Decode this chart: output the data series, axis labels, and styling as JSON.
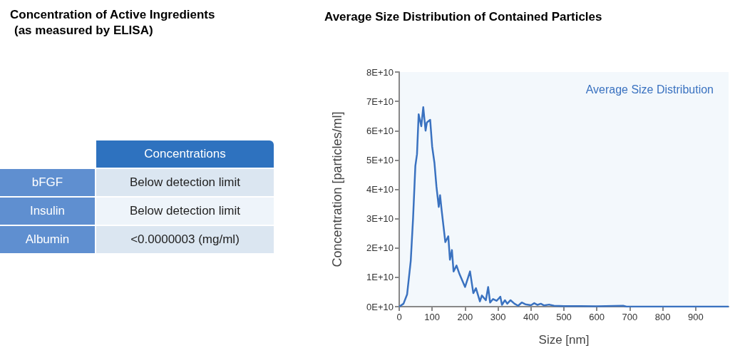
{
  "chart_data": [
    {
      "type": "other",
      "title": "Concentration of Active Ingredients",
      "subtitle": "(as measured by ELISA)",
      "xlabel": "Concentrations",
      "categories": [
        "bFGF",
        "Insulin",
        "Albumin"
      ],
      "value_labels": [
        "Below detection limit",
        "Below detection limit",
        "<0.0000003 (mg/ml)"
      ]
    },
    {
      "type": "line",
      "title": "Average Size Distribution of Contained Particles",
      "xlabel": "Size [nm]",
      "ylabel": "Concentration [particles/ml]",
      "legend": "top right",
      "xlim": [
        0,
        1000
      ],
      "xticks": [
        0,
        100,
        200,
        300,
        400,
        500,
        600,
        700,
        800,
        900
      ],
      "ylim": [
        0,
        80000000000
      ],
      "yticks": [
        {
          "value": 0,
          "label": "0E+10"
        },
        {
          "value": 10000000000,
          "label": "1E+10"
        },
        {
          "value": 20000000000,
          "label": "2E+10"
        },
        {
          "value": 30000000000,
          "label": "3E+10"
        },
        {
          "value": 40000000000,
          "label": "4E+10"
        },
        {
          "value": 50000000000,
          "label": "5E+10"
        },
        {
          "value": 60000000000,
          "label": "6E+10"
        },
        {
          "value": 70000000000,
          "label": "7E+10"
        },
        {
          "value": 80000000000,
          "label": "8E+10"
        }
      ],
      "series": [
        {
          "name": "Average Size Distribution",
          "color": "#3a72c0",
          "x": [
            0,
            13,
            24,
            35,
            42,
            49,
            54,
            59,
            67,
            73,
            80,
            84,
            94,
            100,
            107,
            113,
            120,
            124,
            129,
            140,
            149,
            154,
            160,
            165,
            174,
            183,
            200,
            215,
            225,
            233,
            245,
            251,
            263,
            270,
            276,
            285,
            296,
            307,
            312,
            321,
            328,
            338,
            350,
            361,
            372,
            383,
            400,
            410,
            420,
            430,
            440,
            455,
            470,
            500,
            550,
            600,
            680,
            690,
            800,
            1000
          ],
          "values": [
            0,
            1000000000,
            4200000000,
            15600000000,
            30000000000,
            48000000000,
            52000000000,
            65600000000,
            61500000000,
            68000000000,
            60000000000,
            62800000000,
            63700000000,
            54600000000,
            49000000000,
            41000000000,
            34000000000,
            38000000000,
            32700000000,
            22000000000,
            24000000000,
            16000000000,
            19300000000,
            12000000000,
            14000000000,
            11100000000,
            6700000000,
            12000000000,
            4600000000,
            6300000000,
            1800000000,
            3800000000,
            2200000000,
            6700000000,
            1400000000,
            2600000000,
            2000000000,
            3400000000,
            600000000,
            2200000000,
            1000000000,
            2200000000,
            1000000000,
            300000000,
            1400000000,
            800000000,
            500000000,
            1200000000,
            600000000,
            1000000000,
            400000000,
            700000000,
            300000000,
            200000000,
            200000000,
            100000000,
            300000000,
            0,
            0,
            0
          ]
        }
      ]
    }
  ]
}
